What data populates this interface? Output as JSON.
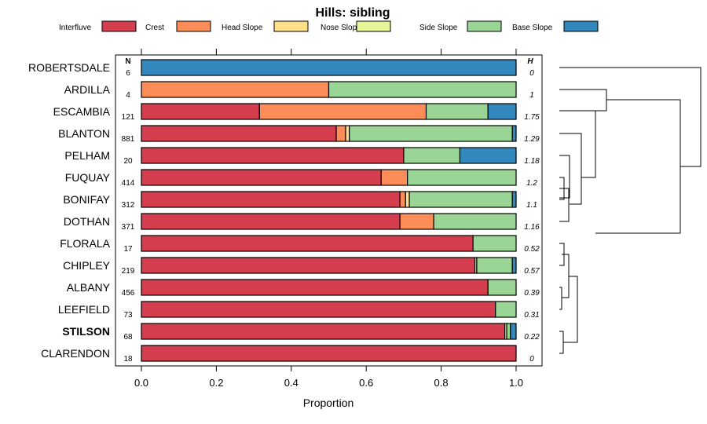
{
  "chart_data": {
    "type": "bar",
    "orientation": "horizontal",
    "stacked": true,
    "title": "Hills: sibling",
    "xlabel": "Proportion",
    "xlim": [
      0,
      1
    ],
    "xticks": [
      "0.0",
      "0.2",
      "0.4",
      "0.6",
      "0.8",
      "1.0"
    ],
    "xtick_values": [
      0,
      0.2,
      0.4,
      0.6,
      0.8,
      1.0
    ],
    "n_header": "N",
    "h_header": "H",
    "legend_placement": "top",
    "bold_category": "STILSON",
    "series": [
      {
        "name": "Interfluve",
        "color": "#d53e4f",
        "values": [
          0,
          0,
          0.315,
          0.52,
          0.7,
          0.64,
          0.69,
          0.69,
          0.885,
          0.89,
          0.925,
          0.945,
          0.97,
          1.0
        ]
      },
      {
        "name": "Crest",
        "color": "#fc8d59",
        "values": [
          0,
          0.5,
          0.445,
          0.025,
          0,
          0.07,
          0.015,
          0.09,
          0,
          0,
          0,
          0,
          0,
          0
        ]
      },
      {
        "name": "Head Slope",
        "color": "#fee08b",
        "values": [
          0,
          0,
          0,
          0.01,
          0,
          0,
          0.01,
          0,
          0,
          0.005,
          0,
          0,
          0,
          0
        ]
      },
      {
        "name": "Nose Slope",
        "color": "#e6f598",
        "values": [
          0,
          0,
          0,
          0,
          0,
          0,
          0,
          0,
          0,
          0,
          0,
          0,
          0.005,
          0
        ]
      },
      {
        "name": "Side Slope",
        "color": "#99d594",
        "values": [
          0,
          0.5,
          0.165,
          0.435,
          0.15,
          0.29,
          0.275,
          0.22,
          0.115,
          0.095,
          0.075,
          0.055,
          0.01,
          0
        ]
      },
      {
        "name": "Base Slope",
        "color": "#3288bd",
        "values": [
          1.0,
          0,
          0.075,
          0.01,
          0.15,
          0,
          0.01,
          0,
          0,
          0.01,
          0,
          0,
          0.015,
          0
        ]
      }
    ],
    "categories": [
      "ROBERTSDALE",
      "ARDILLA",
      "ESCAMBIA",
      "BLANTON",
      "PELHAM",
      "FUQUAY",
      "BONIFAY",
      "DOTHAN",
      "FLORALA",
      "CHIPLEY",
      "ALBANY",
      "LEEFIELD",
      "STILSON",
      "CLARENDON"
    ],
    "n_values": [
      "6",
      "4",
      "121",
      "881",
      "20",
      "414",
      "312",
      "371",
      "17",
      "219",
      "456",
      "73",
      "68",
      "18"
    ],
    "h_values": [
      "0",
      "1",
      "1.75",
      "1.29",
      "1.18",
      "1.2",
      "1.1",
      "1.16",
      "0.52",
      "0.57",
      "0.39",
      "0.31",
      "0.22",
      "0"
    ]
  }
}
